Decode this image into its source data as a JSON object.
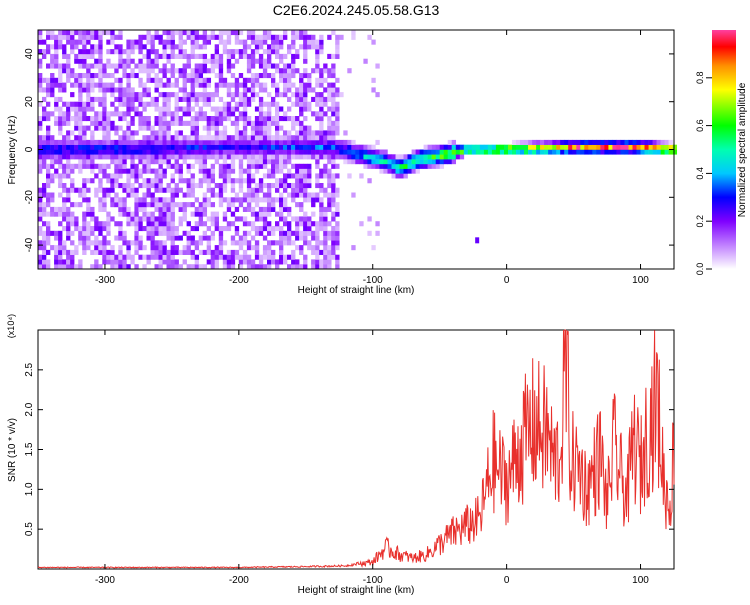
{
  "title": "C2E6.2024.245.05.58.G13",
  "colors": {
    "snr_line": "#e8302c",
    "frame": "#000000",
    "background": "#ffffff"
  },
  "chart_data": [
    {
      "type": "heatmap",
      "title": "C2E6.2024.245.05.58.G13",
      "xlabel": "Height of straight line (km)",
      "ylabel": "Frequency (Hz)",
      "xlim": [
        -350,
        125
      ],
      "ylim": [
        -50,
        50
      ],
      "xticks": [
        -300,
        -200,
        -100,
        0,
        100
      ],
      "yticks": [
        -40,
        -20,
        0,
        20,
        40
      ],
      "colorbar": {
        "label": "Normalized spectral amplitude",
        "range": [
          0,
          1
        ],
        "ticks": [
          "0.0",
          "0.2",
          "0.4",
          "0.6",
          "0.8"
        ],
        "colormap": "rainbow (white → violet → blue → cyan → green → yellow → orange → red)"
      },
      "ridge": {
        "description": "Narrow high-amplitude ridge near 0 Hz; dips to about -8 Hz around -80 km, returns to ~0 Hz by -40 km and stays near 0 Hz up to 125 km with strongest (red) amplitudes",
        "points": [
          {
            "x": -300,
            "y": 0,
            "amp": 0.35
          },
          {
            "x": -200,
            "y": 1,
            "amp": 0.3
          },
          {
            "x": -130,
            "y": 1,
            "amp": 0.35
          },
          {
            "x": -110,
            "y": -2,
            "amp": 0.45
          },
          {
            "x": -90,
            "y": -5,
            "amp": 0.55
          },
          {
            "x": -80,
            "y": -8,
            "amp": 0.6
          },
          {
            "x": -65,
            "y": -4,
            "amp": 0.65
          },
          {
            "x": -45,
            "y": -2,
            "amp": 0.7
          },
          {
            "x": -30,
            "y": 0,
            "amp": 0.75
          },
          {
            "x": 0,
            "y": 0,
            "amp": 0.85
          },
          {
            "x": 50,
            "y": 1,
            "amp": 0.9
          },
          {
            "x": 100,
            "y": 1,
            "amp": 0.95
          },
          {
            "x": 125,
            "y": 0,
            "amp": 1.0
          }
        ],
        "noise_region_x": [
          -350,
          -125
        ],
        "isolated_blob": {
          "x": -22,
          "y": -38
        }
      }
    },
    {
      "type": "line",
      "xlabel": "Height of straight line (km)",
      "ylabel": "SNR (10 * v/v)",
      "yscale_note": "(x10⁴)",
      "xlim": [
        -350,
        125
      ],
      "ylim": [
        0,
        3.0
      ],
      "xticks": [
        -300,
        -200,
        -100,
        0,
        100
      ],
      "yticks": [
        "0.5",
        "1.0",
        "1.5",
        "2.0",
        "2.5"
      ],
      "series": [
        {
          "color": "#e8302c",
          "description": "Near-zero SNR up to about -100 km, noisy rise from -60 km, large fluctuations 0.5–2.0 between -10 and 125 km",
          "x": [
            -350,
            -300,
            -250,
            -200,
            -150,
            -120,
            -100,
            -90,
            -80,
            -70,
            -60,
            -50,
            -40,
            -30,
            -20,
            -10,
            0,
            10,
            20,
            30,
            35,
            40,
            44,
            48,
            55,
            60,
            70,
            75,
            80,
            85,
            90,
            95,
            100,
            105,
            110,
            112,
            116,
            118,
            120,
            122,
            125
          ],
          "values": [
            0.02,
            0.02,
            0.02,
            0.02,
            0.03,
            0.04,
            0.1,
            0.3,
            0.2,
            0.15,
            0.2,
            0.35,
            0.5,
            0.6,
            0.7,
            1.5,
            1.2,
            1.7,
            2.0,
            1.9,
            1.5,
            1.6,
            3.0,
            1.5,
            1.4,
            1.1,
            1.6,
            0.9,
            1.7,
            1.3,
            1.0,
            1.8,
            1.4,
            1.9,
            2.2,
            2.4,
            1.6,
            1.1,
            1.0,
            0.9,
            1.7
          ]
        }
      ]
    }
  ]
}
